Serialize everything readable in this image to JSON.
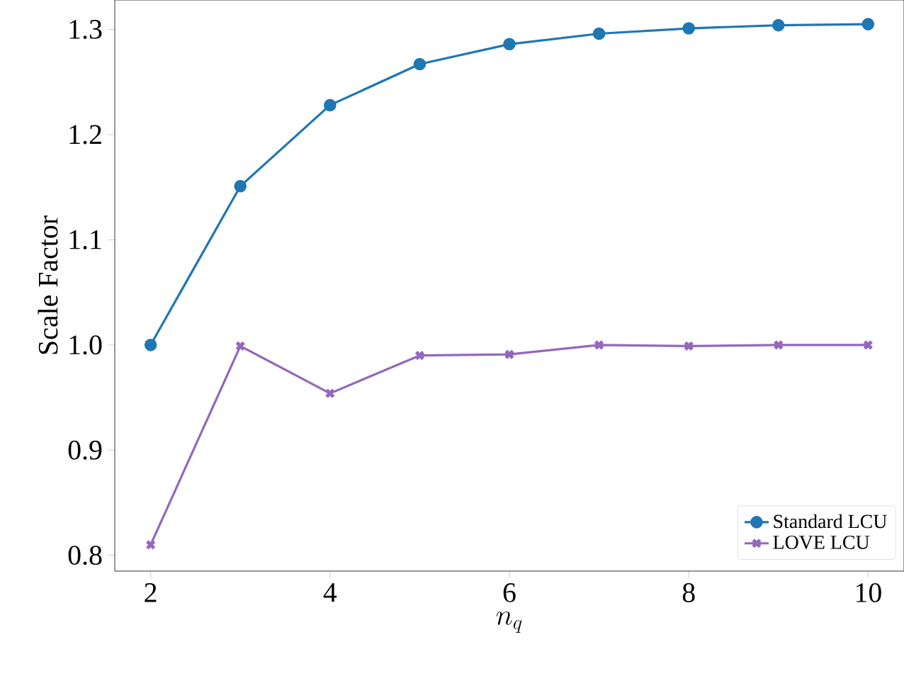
{
  "chart_data": {
    "type": "line",
    "xlabel": "n_q",
    "ylabel": "Scale Factor",
    "x": [
      2,
      3,
      4,
      5,
      6,
      7,
      8,
      9,
      10
    ],
    "series": [
      {
        "name": "Standard LCU",
        "color": "#1f77b4",
        "marker": "circle",
        "values": [
          1.0,
          1.151,
          1.228,
          1.267,
          1.286,
          1.296,
          1.301,
          1.304,
          1.305
        ]
      },
      {
        "name": "LOVE LCU",
        "color": "#9467bd",
        "marker": "cross",
        "values": [
          0.81,
          0.999,
          0.954,
          0.99,
          0.991,
          1.0,
          0.999,
          1.0,
          1.0
        ]
      }
    ],
    "xlim": [
      1.6,
      10.4
    ],
    "ylim": [
      0.785,
      1.328
    ],
    "xticks": [
      2,
      4,
      6,
      8,
      10
    ],
    "yticks": [
      0.8,
      0.9,
      {
        "value": 1.0,
        "label": "1.0"
      },
      1.1,
      1.2,
      1.3
    ],
    "legend": "bottom right",
    "grid": false
  }
}
